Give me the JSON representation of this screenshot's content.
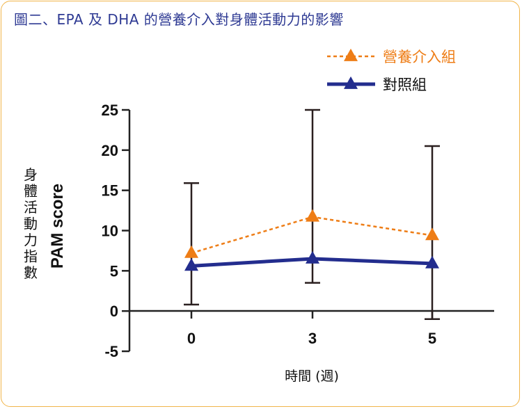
{
  "title": "圖二、EPA 及 DHA 的營養介入對身體活動力的影響",
  "chart_data": {
    "type": "line",
    "title": "圖二、EPA 及 DHA 的營養介入對身體活動力的影響",
    "xlabel": "時間 (週)",
    "ylabel_zh": "身體活動力指數",
    "ylabel_en": "PAM score",
    "categories": [
      "0",
      "3",
      "5"
    ],
    "y_ticks": [
      "25",
      "20",
      "15",
      "10",
      "5",
      "0",
      "-5"
    ],
    "ylim": [
      -5,
      25
    ],
    "grid": false,
    "legend_position": "top-right",
    "series": [
      {
        "name": "營養介入組",
        "style": "dashed",
        "color": "#ee7d16",
        "values": [
          7.2,
          11.7,
          9.4
        ],
        "error_upper": [
          15.9,
          25.0,
          20.5
        ]
      },
      {
        "name": "對照組",
        "style": "solid",
        "color": "#232d8e",
        "values": [
          5.6,
          6.5,
          5.9
        ],
        "error_lower": [
          0.8,
          3.5,
          -1.0
        ]
      }
    ]
  }
}
